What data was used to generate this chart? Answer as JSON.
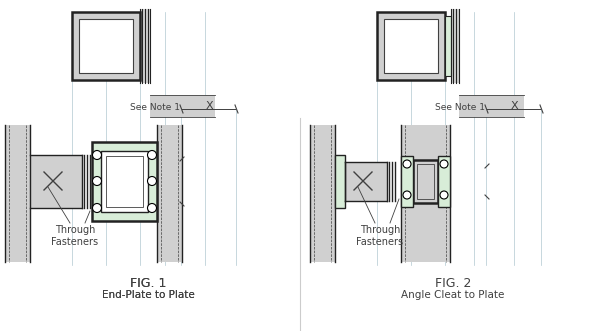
{
  "fig_width": 5.99,
  "fig_height": 3.31,
  "dpi": 100,
  "bg_color": "#ffffff",
  "lc": "#404040",
  "lc_dark": "#222222",
  "gray": "#d0d0d0",
  "green": "#d8edd8",
  "grid_color": "#b0c8d0",
  "fig1_label": "FIG. 1",
  "fig1_sub": "End-Plate to Plate",
  "fig2_label": "FIG. 2",
  "fig2_sub": "Angle Cleat to Plate",
  "note": "See Note 1",
  "x_sym": "X",
  "through": "Through\nFasteners"
}
